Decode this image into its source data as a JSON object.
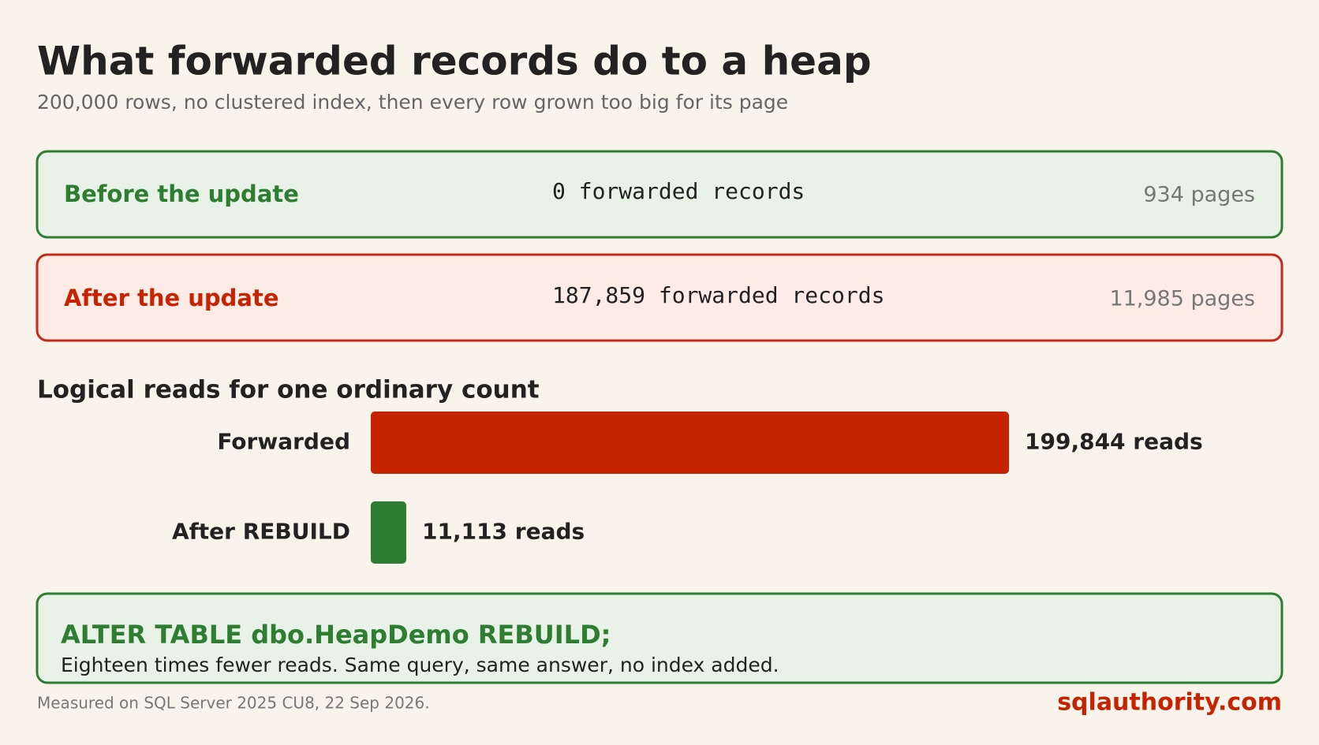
{
  "header": {
    "title": "What forwarded records do to a heap",
    "subtitle": "200,000 rows, no clustered index, then every row grown too big for its page"
  },
  "panels": [
    {
      "label": "Before the update",
      "records": "0 forwarded records",
      "pages": "934 pages"
    },
    {
      "label": "After the update",
      "records": "187,859 forwarded records",
      "pages": "11,985 pages"
    }
  ],
  "chart_data": {
    "type": "bar",
    "orientation": "horizontal",
    "title": "Logical reads for one ordinary count",
    "categories": [
      "Forwarded",
      "After REBUILD"
    ],
    "values": [
      199844,
      11113
    ],
    "value_labels": [
      "199,844 reads",
      "11,113 reads"
    ],
    "colors": [
      "#c62400",
      "#2e7d32"
    ]
  },
  "callout": {
    "title": "ALTER TABLE dbo.HeapDemo REBUILD;",
    "text": "Eighteen times fewer reads. Same query, same answer, no index added."
  },
  "footer": {
    "note": "Measured on SQL Server 2025 CU8, 22 Sep 2026.",
    "brand": "sqlauthority.com"
  }
}
